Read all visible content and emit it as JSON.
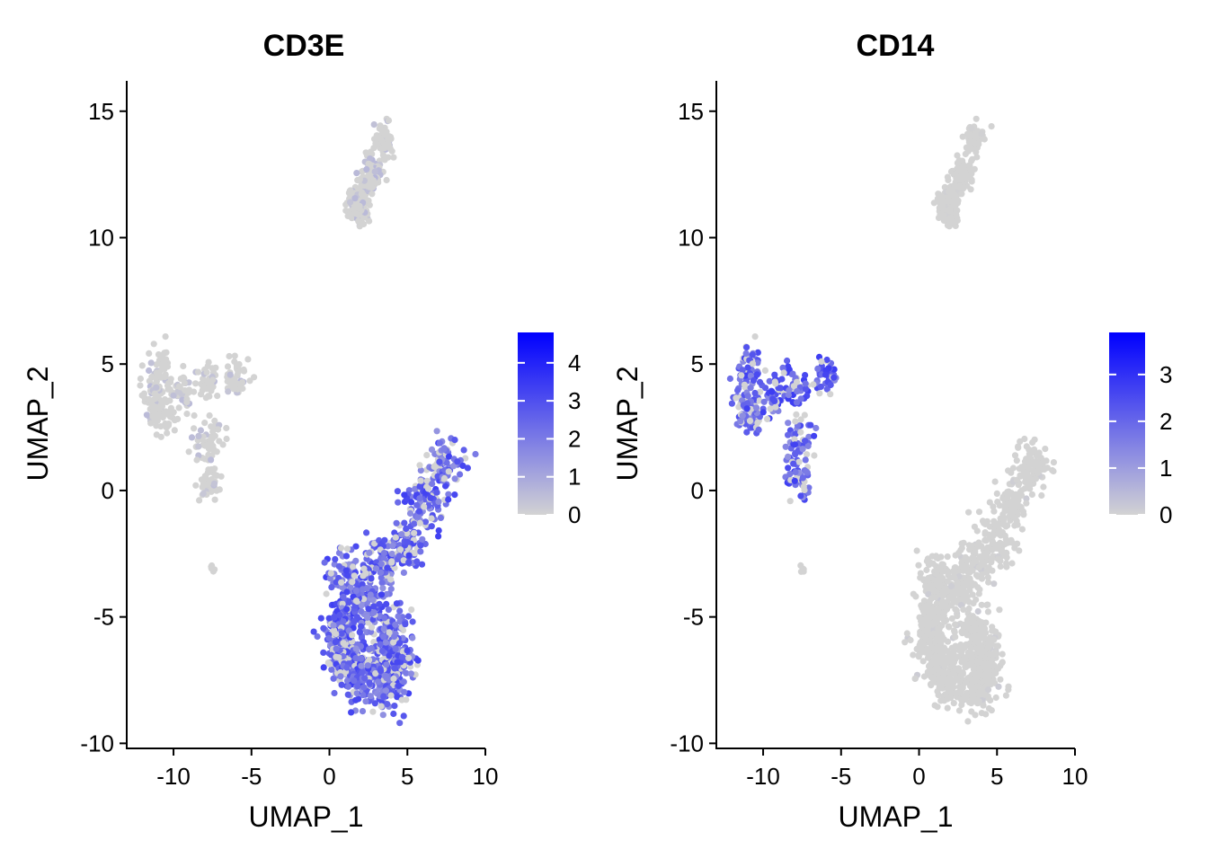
{
  "chart_data": [
    {
      "type": "scatter",
      "title": "CD3E",
      "xlabel": "UMAP_1",
      "ylabel": "UMAP_2",
      "xlim": [
        -13,
        10
      ],
      "ylim": [
        -10.2,
        16.2
      ],
      "xticks": [
        -10,
        -5,
        0,
        5,
        10
      ],
      "yticks": [
        -10,
        -5,
        0,
        5,
        10,
        15
      ],
      "colorbar": {
        "min": 0,
        "max": 4.8,
        "ticks": [
          0,
          1,
          2,
          3,
          4
        ],
        "low_color": "#d3d3d3",
        "high_color": "#0000ff"
      },
      "clusters": [
        {
          "name": "upper",
          "points": [
            [
              2.0,
              11.0
            ],
            [
              2.8,
              12.6
            ],
            [
              3.5,
              13.8
            ],
            [
              2.3,
              12.0
            ],
            [
              1.6,
              11.4
            ]
          ],
          "spread": 0.5,
          "mean_expr": 0.5
        },
        {
          "name": "left",
          "points": [
            [
              -11.0,
              4.8
            ],
            [
              -10.6,
              3.0
            ],
            [
              -9.5,
              3.8
            ],
            [
              -8.0,
              4.2
            ],
            [
              -6.0,
              4.6
            ],
            [
              -7.6,
              2.0
            ],
            [
              -7.8,
              0.4
            ],
            [
              -11.2,
              3.6
            ]
          ],
          "spread": 0.7,
          "mean_expr": 0.4
        },
        {
          "name": "stem",
          "points": [
            [
              -7.5,
              -3.1
            ]
          ],
          "spread": 0.15,
          "mean_expr": 0.0
        },
        {
          "name": "main",
          "points": [
            [
              1.0,
              -3.5
            ],
            [
              3.5,
              -3.0
            ],
            [
              1.0,
              -5.0
            ],
            [
              3.5,
              -5.5
            ],
            [
              1.2,
              -6.8
            ],
            [
              3.5,
              -7.0
            ],
            [
              2.5,
              -4.0
            ],
            [
              5.0,
              -2.0
            ],
            [
              6.0,
              -0.5
            ],
            [
              7.3,
              1.0
            ],
            [
              0.6,
              -6.0
            ],
            [
              4.5,
              -6.5
            ],
            [
              3.8,
              -7.8
            ],
            [
              2.0,
              -7.5
            ]
          ],
          "spread": 0.9,
          "mean_expr": 2.4
        }
      ]
    },
    {
      "type": "scatter",
      "title": "CD14",
      "xlabel": "UMAP_1",
      "ylabel": "UMAP_2",
      "xlim": [
        -13,
        10
      ],
      "ylim": [
        -10.2,
        16.2
      ],
      "xticks": [
        -10,
        -5,
        0,
        5,
        10
      ],
      "yticks": [
        -10,
        -5,
        0,
        5,
        10,
        15
      ],
      "colorbar": {
        "min": 0,
        "max": 3.9,
        "ticks": [
          0,
          1,
          2,
          3
        ],
        "low_color": "#d3d3d3",
        "high_color": "#0000ff"
      },
      "clusters": [
        {
          "name": "upper",
          "points": [
            [
              2.0,
              11.0
            ],
            [
              2.8,
              12.6
            ],
            [
              3.5,
              13.8
            ],
            [
              2.3,
              12.0
            ],
            [
              1.6,
              11.4
            ]
          ],
          "spread": 0.5,
          "mean_expr": 0.05
        },
        {
          "name": "left",
          "points": [
            [
              -11.0,
              4.8
            ],
            [
              -10.6,
              3.0
            ],
            [
              -9.5,
              3.8
            ],
            [
              -8.0,
              4.2
            ],
            [
              -6.0,
              4.6
            ],
            [
              -7.6,
              2.0
            ],
            [
              -7.8,
              0.4
            ],
            [
              -11.2,
              3.6
            ]
          ],
          "spread": 0.7,
          "mean_expr": 2.0
        },
        {
          "name": "stem",
          "points": [
            [
              -7.5,
              -3.1
            ]
          ],
          "spread": 0.15,
          "mean_expr": 0.0
        },
        {
          "name": "main",
          "points": [
            [
              1.0,
              -3.5
            ],
            [
              3.5,
              -3.0
            ],
            [
              1.0,
              -5.0
            ],
            [
              3.5,
              -5.5
            ],
            [
              1.2,
              -6.8
            ],
            [
              3.5,
              -7.0
            ],
            [
              2.5,
              -4.0
            ],
            [
              5.0,
              -2.0
            ],
            [
              6.0,
              -0.5
            ],
            [
              7.3,
              1.0
            ],
            [
              0.6,
              -6.0
            ],
            [
              4.5,
              -6.5
            ],
            [
              3.8,
              -7.8
            ],
            [
              2.0,
              -7.5
            ]
          ],
          "spread": 0.9,
          "mean_expr": 0.1
        }
      ]
    }
  ]
}
